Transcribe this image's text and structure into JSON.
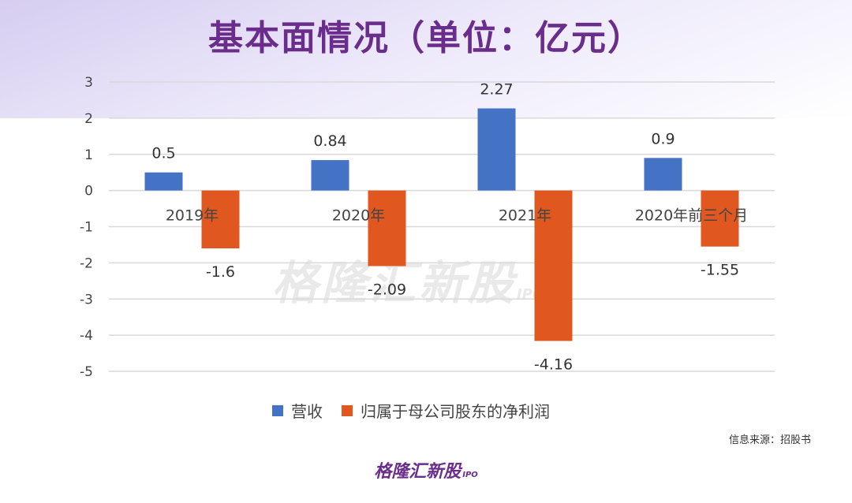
{
  "title": "基本面情况（单位：亿元）",
  "watermark": "格隆汇新股",
  "watermark_sub": "IPO",
  "source": "信息来源：招股书",
  "logo": "格隆汇新股",
  "logo_sub": "IPO",
  "colors": {
    "revenue": "#4472c4",
    "profit": "#e0581f",
    "title": "#6a2d8c"
  },
  "chart_data": {
    "type": "bar",
    "categories": [
      "2019年",
      "2020年",
      "2021年",
      "2020年前三个月"
    ],
    "series": [
      {
        "name": "营收",
        "values": [
          0.5,
          0.84,
          2.27,
          0.9
        ]
      },
      {
        "name": "归属于母公司股东的净利润",
        "values": [
          -1.6,
          -2.09,
          -4.16,
          -1.55
        ]
      }
    ],
    "ylim": [
      -5,
      3
    ],
    "yticks": [
      3,
      2,
      1,
      0,
      -1,
      -2,
      -3,
      -4,
      -5
    ],
    "grid": true,
    "legend": "bottom",
    "data_labels": true
  }
}
